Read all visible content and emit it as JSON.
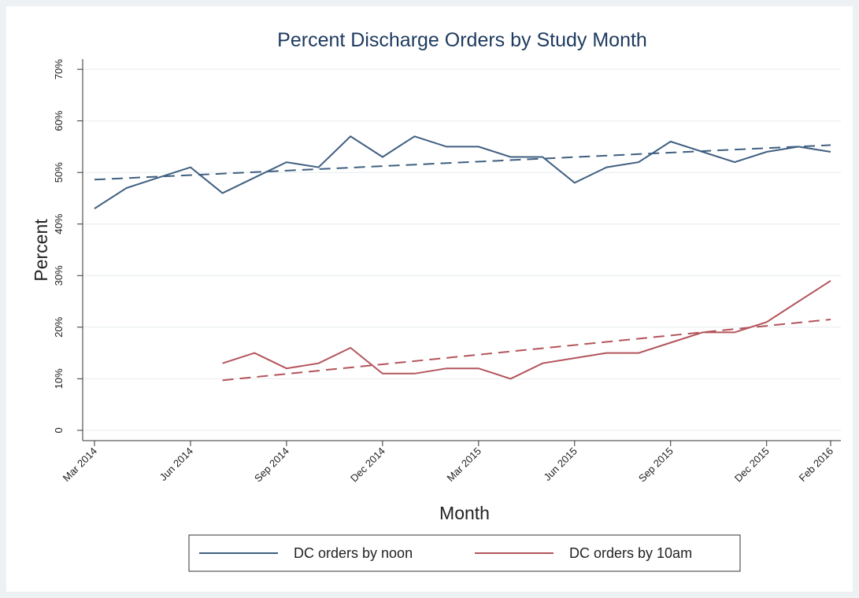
{
  "chart_data": {
    "type": "line",
    "title": "Percent Discharge Orders by Study Month",
    "x_label": "Month",
    "y_label": "Percent",
    "categories": [
      "Mar 2014",
      null,
      null,
      "Jun 2014",
      null,
      null,
      "Sep 2014",
      null,
      null,
      "Dec 2014",
      null,
      null,
      "Mar 2015",
      null,
      null,
      "Jun 2015",
      null,
      null,
      "Sep 2015",
      null,
      null,
      "Dec 2015",
      null,
      "Feb 2016"
    ],
    "series": [
      {
        "name": "DC orders by noon",
        "color": "#3f5f80",
        "values": [
          43,
          47,
          49,
          51,
          46,
          49,
          52,
          51,
          57,
          53,
          57,
          55,
          55,
          53,
          53,
          48,
          51,
          52,
          56,
          54,
          52,
          54,
          55,
          54
        ]
      },
      {
        "name": "DC orders by 10am",
        "color": "#b3545c",
        "values": [
          null,
          null,
          null,
          null,
          13,
          15,
          12,
          13,
          16,
          11,
          11,
          12,
          12,
          10,
          13,
          14,
          15,
          15,
          17,
          19,
          19,
          21,
          25,
          29
        ]
      }
    ],
    "trendline": true,
    "ylim": [
      -2,
      72
    ],
    "yticks": [
      0,
      {
        "value": 10,
        "label": "10%"
      },
      {
        "value": 20,
        "label": "20%"
      },
      {
        "value": 30,
        "label": "30%"
      },
      {
        "value": 40,
        "label": "40%"
      },
      {
        "value": 50,
        "label": "50%"
      },
      {
        "value": 60,
        "label": "60%"
      },
      {
        "value": 70,
        "label": "70%"
      }
    ],
    "grid": true,
    "legend": "bottom"
  }
}
